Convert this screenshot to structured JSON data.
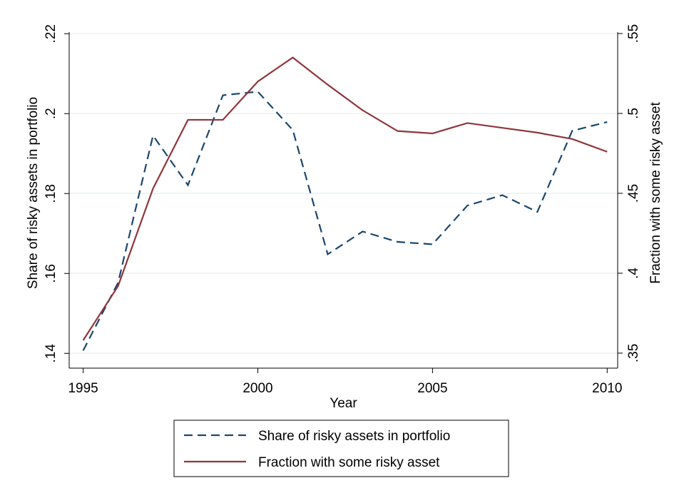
{
  "chart_data": {
    "type": "line",
    "x": [
      1995,
      1996,
      1997,
      1998,
      1999,
      2000,
      2001,
      2002,
      2003,
      2004,
      2005,
      2006,
      2007,
      2008,
      2009,
      2010
    ],
    "xlim": [
      1994.6,
      2010.3
    ],
    "xticks": [
      1995,
      2000,
      2005,
      2010
    ],
    "x_label": "Year",
    "ylim": [
      0.1363,
      0.2204
    ],
    "yticks": [
      {
        "value": 0.14,
        "label": ".14"
      },
      {
        "value": 0.16,
        "label": ".16"
      },
      {
        "value": 0.18,
        "label": ".18"
      },
      {
        "value": 0.2,
        "label": ".2"
      },
      {
        "value": 0.22,
        "label": ".22"
      }
    ],
    "y_label": "Share of risky assets in portfolio",
    "y2lim": [
      0.3406,
      0.5509
    ],
    "y2ticks": [
      {
        "value": 0.35,
        "label": ".35"
      },
      {
        "value": 0.4,
        "label": ".4"
      },
      {
        "value": 0.45,
        "label": ".45"
      },
      {
        "value": 0.5,
        "label": ".5"
      },
      {
        "value": 0.55,
        "label": ".55"
      }
    ],
    "y2_label": "Fraction with some risky asset",
    "grid": true,
    "series": [
      {
        "name": "Share of risky assets in portfolio",
        "color": "#1a476f",
        "dash": true,
        "values": [
          0.1407,
          0.1577,
          0.1945,
          0.1821,
          0.2046,
          0.2055,
          0.1959,
          0.1648,
          0.1705,
          0.1679,
          0.1673,
          0.177,
          0.1796,
          0.1754,
          0.1957,
          0.1979
        ]
      },
      {
        "name": "Fraction with some risky asset",
        "color": "#90353b",
        "axis": "y2",
        "values": [
          0.358,
          0.392,
          0.453,
          0.496,
          0.496,
          0.52,
          0.535,
          0.518,
          0.502,
          0.489,
          0.4875,
          0.494,
          0.491,
          0.488,
          0.484,
          0.476
        ]
      }
    ]
  }
}
